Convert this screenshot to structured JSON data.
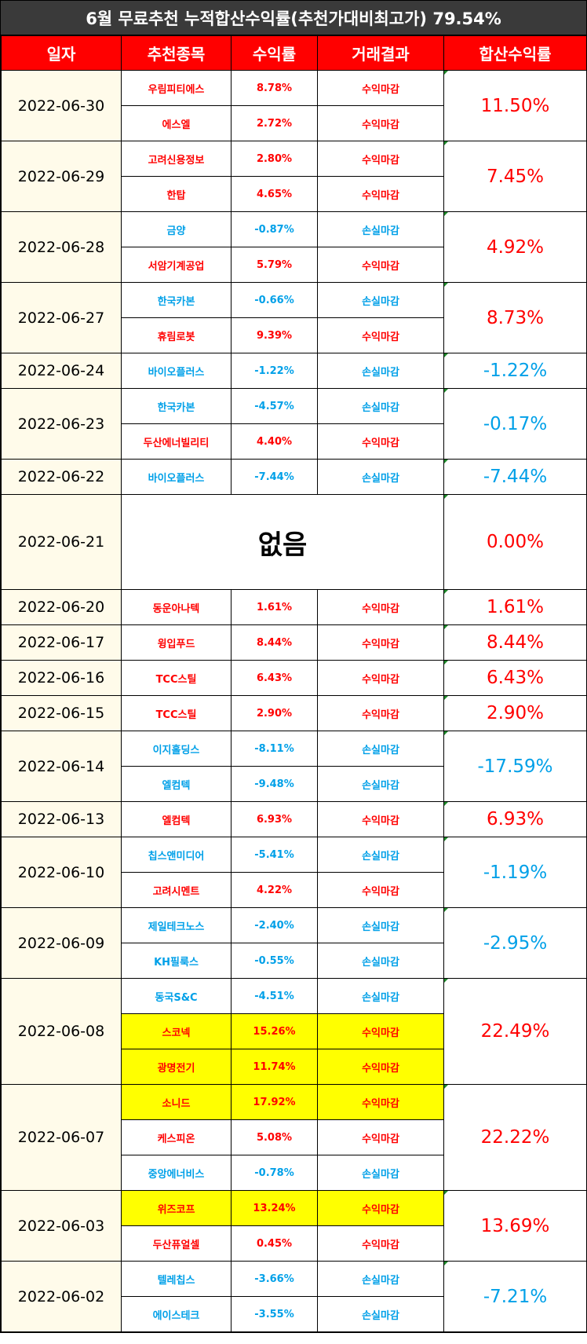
{
  "title": "6월 무료추천 누적합산수익률(추천가대비최고가) 79.54%",
  "headers": [
    "일자",
    "추천종목",
    "수익률",
    "거래결과",
    "합산수익률"
  ],
  "colors": {
    "profit": "#ff0000",
    "loss": "#00a0e8",
    "highlight": "#ffff00",
    "header": "#ff0000",
    "title_bg": "#3a3a3a"
  },
  "groups": [
    {
      "date": "2022-06-30",
      "total": "11.50%",
      "total_sign": "profit",
      "rows": [
        {
          "name": "우림피티에스",
          "rate": "8.78%",
          "result": "수익마감",
          "sign": "profit",
          "highlight": false
        },
        {
          "name": "에스엘",
          "rate": "2.72%",
          "result": "수익마감",
          "sign": "profit",
          "highlight": false
        }
      ]
    },
    {
      "date": "2022-06-29",
      "total": "7.45%",
      "total_sign": "profit",
      "rows": [
        {
          "name": "고려신용정보",
          "rate": "2.80%",
          "result": "수익마감",
          "sign": "profit",
          "highlight": false
        },
        {
          "name": "한탑",
          "rate": "4.65%",
          "result": "수익마감",
          "sign": "profit",
          "highlight": false
        }
      ]
    },
    {
      "date": "2022-06-28",
      "total": "4.92%",
      "total_sign": "profit",
      "rows": [
        {
          "name": "금양",
          "rate": "-0.87%",
          "result": "손실마감",
          "sign": "loss",
          "highlight": false
        },
        {
          "name": "서암기계공업",
          "rate": "5.79%",
          "result": "수익마감",
          "sign": "profit",
          "highlight": false
        }
      ]
    },
    {
      "date": "2022-06-27",
      "total": "8.73%",
      "total_sign": "profit",
      "rows": [
        {
          "name": "한국카본",
          "rate": "-0.66%",
          "result": "손실마감",
          "sign": "loss",
          "highlight": false
        },
        {
          "name": "휴림로봇",
          "rate": "9.39%",
          "result": "수익마감",
          "sign": "profit",
          "highlight": false
        }
      ]
    },
    {
      "date": "2022-06-24",
      "total": "-1.22%",
      "total_sign": "loss",
      "rows": [
        {
          "name": "바이오플러스",
          "rate": "-1.22%",
          "result": "손실마감",
          "sign": "loss",
          "highlight": false
        }
      ]
    },
    {
      "date": "2022-06-23",
      "total": "-0.17%",
      "total_sign": "loss",
      "rows": [
        {
          "name": "한국카본",
          "rate": "-4.57%",
          "result": "손실마감",
          "sign": "loss",
          "highlight": false
        },
        {
          "name": "두산에너빌리티",
          "rate": "4.40%",
          "result": "수익마감",
          "sign": "profit",
          "highlight": false
        }
      ]
    },
    {
      "date": "2022-06-22",
      "total": "-7.44%",
      "total_sign": "loss",
      "rows": [
        {
          "name": "바이오플러스",
          "rate": "-7.44%",
          "result": "손실마감",
          "sign": "loss",
          "highlight": false
        }
      ]
    },
    {
      "date": "2022-06-21",
      "total": "0.00%",
      "total_sign": "profit",
      "none": "없음",
      "rows": []
    },
    {
      "date": "2022-06-20",
      "total": "1.61%",
      "total_sign": "profit",
      "rows": [
        {
          "name": "동운아나텍",
          "rate": "1.61%",
          "result": "수익마감",
          "sign": "profit",
          "highlight": false
        }
      ]
    },
    {
      "date": "2022-06-17",
      "total": "8.44%",
      "total_sign": "profit",
      "rows": [
        {
          "name": "윙입푸드",
          "rate": "8.44%",
          "result": "수익마감",
          "sign": "profit",
          "highlight": false
        }
      ]
    },
    {
      "date": "2022-06-16",
      "total": "6.43%",
      "total_sign": "profit",
      "rows": [
        {
          "name": "TCC스틸",
          "rate": "6.43%",
          "result": "수익마감",
          "sign": "profit",
          "highlight": false
        }
      ]
    },
    {
      "date": "2022-06-15",
      "total": "2.90%",
      "total_sign": "profit",
      "rows": [
        {
          "name": "TCC스틸",
          "rate": "2.90%",
          "result": "수익마감",
          "sign": "profit",
          "highlight": false
        }
      ]
    },
    {
      "date": "2022-06-14",
      "total": "-17.59%",
      "total_sign": "loss",
      "rows": [
        {
          "name": "이지홀딩스",
          "rate": "-8.11%",
          "result": "손실마감",
          "sign": "loss",
          "highlight": false
        },
        {
          "name": "엘컴텍",
          "rate": "-9.48%",
          "result": "손실마감",
          "sign": "loss",
          "highlight": false
        }
      ]
    },
    {
      "date": "2022-06-13",
      "total": "6.93%",
      "total_sign": "profit",
      "rows": [
        {
          "name": "엘컴텍",
          "rate": "6.93%",
          "result": "수익마감",
          "sign": "profit",
          "highlight": false
        }
      ]
    },
    {
      "date": "2022-06-10",
      "total": "-1.19%",
      "total_sign": "loss",
      "rows": [
        {
          "name": "칩스앤미디어",
          "rate": "-5.41%",
          "result": "손실마감",
          "sign": "loss",
          "highlight": false
        },
        {
          "name": "고려시멘트",
          "rate": "4.22%",
          "result": "수익마감",
          "sign": "profit",
          "highlight": false
        }
      ]
    },
    {
      "date": "2022-06-09",
      "total": "-2.95%",
      "total_sign": "loss",
      "rows": [
        {
          "name": "제일테크노스",
          "rate": "-2.40%",
          "result": "손실마감",
          "sign": "loss",
          "highlight": false
        },
        {
          "name": "KH필룩스",
          "rate": "-0.55%",
          "result": "손실마감",
          "sign": "loss",
          "highlight": false
        }
      ]
    },
    {
      "date": "2022-06-08",
      "total": "22.49%",
      "total_sign": "profit",
      "rows": [
        {
          "name": "동국S&C",
          "rate": "-4.51%",
          "result": "손실마감",
          "sign": "loss",
          "highlight": false
        },
        {
          "name": "스코넥",
          "rate": "15.26%",
          "result": "수익마감",
          "sign": "profit",
          "highlight": true
        },
        {
          "name": "광명전기",
          "rate": "11.74%",
          "result": "수익마감",
          "sign": "profit",
          "highlight": true
        }
      ]
    },
    {
      "date": "2022-06-07",
      "total": "22.22%",
      "total_sign": "profit",
      "rows": [
        {
          "name": "소니드",
          "rate": "17.92%",
          "result": "수익마감",
          "sign": "profit",
          "highlight": true
        },
        {
          "name": "케스피온",
          "rate": "5.08%",
          "result": "수익마감",
          "sign": "profit",
          "highlight": false
        },
        {
          "name": "중앙에너비스",
          "rate": "-0.78%",
          "result": "손실마감",
          "sign": "loss",
          "highlight": false
        }
      ]
    },
    {
      "date": "2022-06-03",
      "total": "13.69%",
      "total_sign": "profit",
      "rows": [
        {
          "name": "위즈코프",
          "rate": "13.24%",
          "result": "수익마감",
          "sign": "profit",
          "highlight": true
        },
        {
          "name": "두산퓨얼셀",
          "rate": "0.45%",
          "result": "수익마감",
          "sign": "profit",
          "highlight": false
        }
      ]
    },
    {
      "date": "2022-06-02",
      "total": "-7.21%",
      "total_sign": "loss",
      "rows": [
        {
          "name": "텔레칩스",
          "rate": "-3.66%",
          "result": "손실마감",
          "sign": "loss",
          "highlight": false
        },
        {
          "name": "에이스테크",
          "rate": "-3.55%",
          "result": "손실마감",
          "sign": "loss",
          "highlight": false
        }
      ]
    }
  ]
}
